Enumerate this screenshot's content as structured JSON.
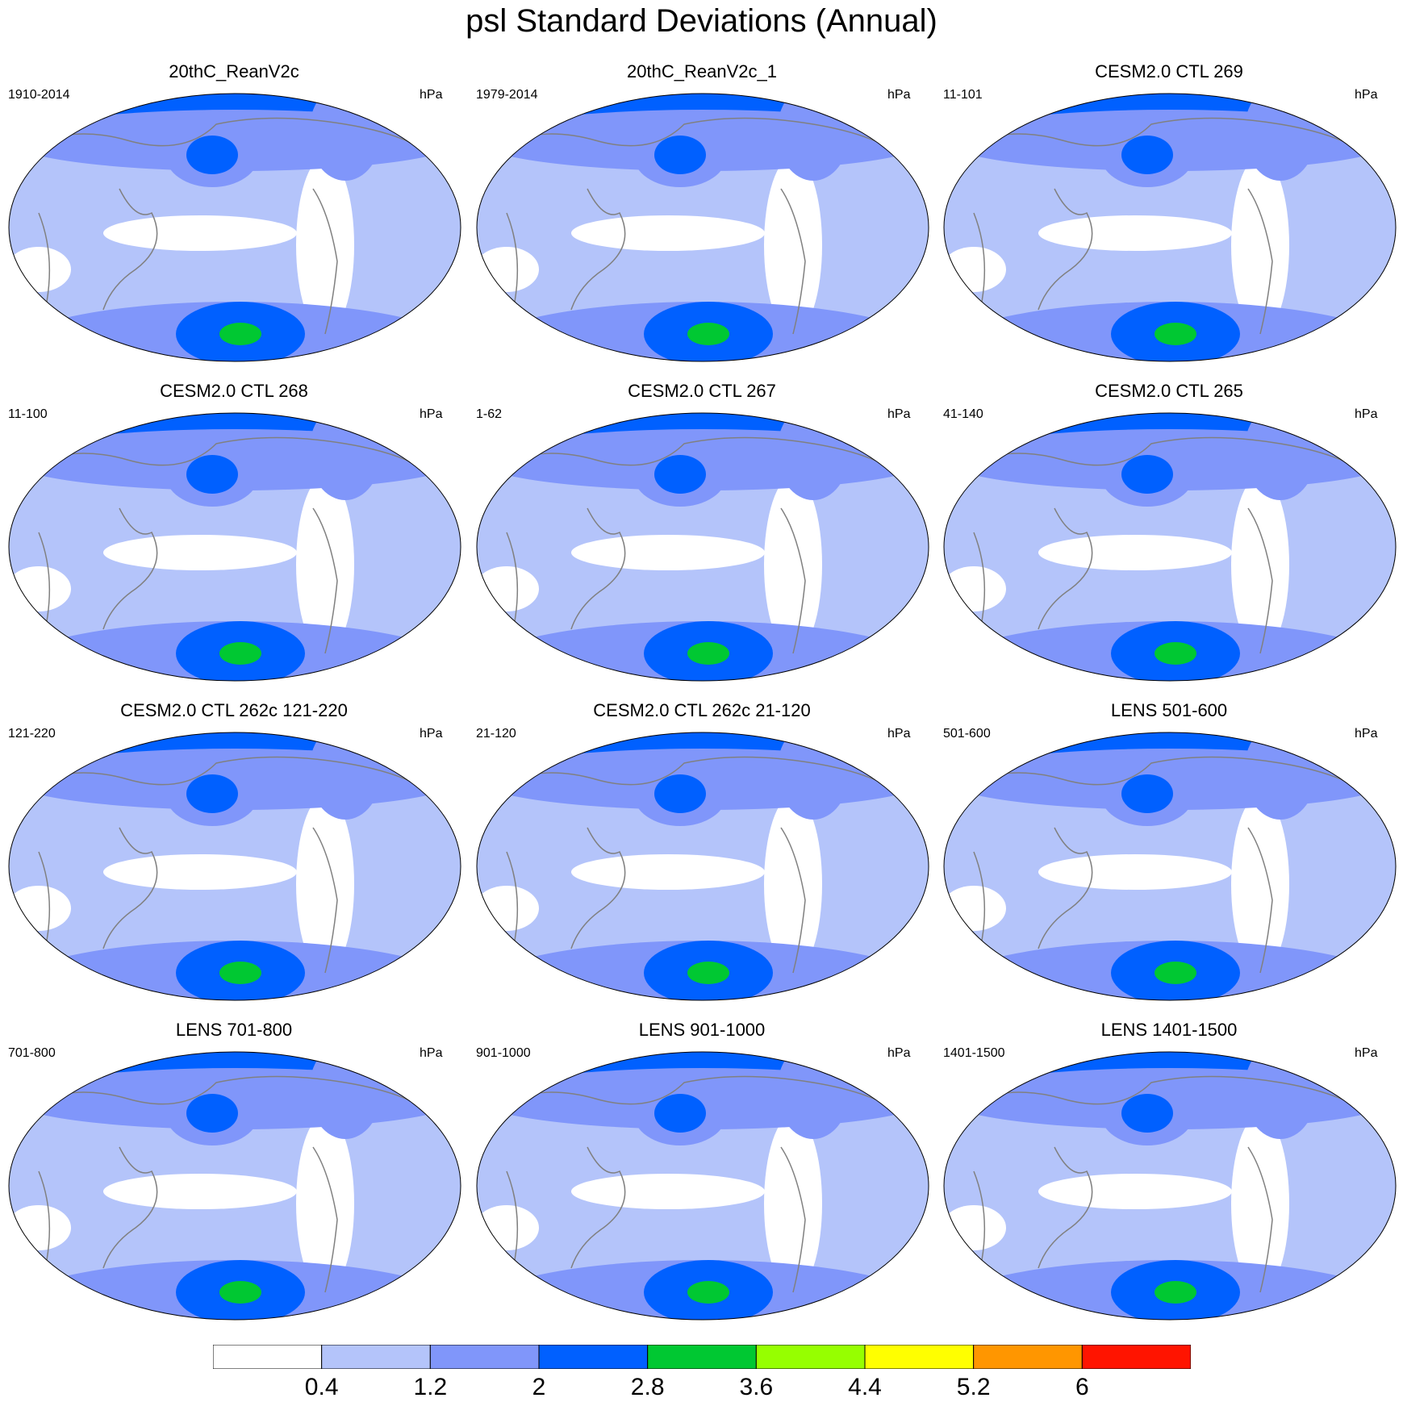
{
  "title": "psl Standard Deviations (Annual)",
  "panels": [
    {
      "title": "20thC_ReanV2c",
      "period": "1910-2014",
      "units": "hPa"
    },
    {
      "title": "20thC_ReanV2c_1",
      "period": "1979-2014",
      "units": "hPa"
    },
    {
      "title": "CESM2.0 CTL 269",
      "period": "11-101",
      "units": "hPa"
    },
    {
      "title": "CESM2.0 CTL 268",
      "period": "11-100",
      "units": "hPa"
    },
    {
      "title": "CESM2.0 CTL 267",
      "period": "1-62",
      "units": "hPa"
    },
    {
      "title": "CESM2.0 CTL 265",
      "period": "41-140",
      "units": "hPa"
    },
    {
      "title": "CESM2.0 CTL 262c 121-220",
      "period": "121-220",
      "units": "hPa"
    },
    {
      "title": "CESM2.0 CTL 262c 21-120",
      "period": "21-120",
      "units": "hPa"
    },
    {
      "title": "LENS 501-600",
      "period": "501-600",
      "units": "hPa"
    },
    {
      "title": "LENS 701-800",
      "period": "701-800",
      "units": "hPa"
    },
    {
      "title": "LENS 901-1000",
      "period": "901-1000",
      "units": "hPa"
    },
    {
      "title": "LENS 1401-1500",
      "period": "1401-1500",
      "units": "hPa"
    }
  ],
  "colorbar": {
    "labels": [
      "0.4",
      "1.2",
      "2",
      "2.8",
      "3.6",
      "4.4",
      "5.2",
      "6"
    ],
    "colors": [
      "#ffffff",
      "#b4c4fa",
      "#8096fa",
      "#0060ff",
      "#00c832",
      "#96ff00",
      "#ffff00",
      "#ff9600",
      "#ff1400"
    ]
  }
}
